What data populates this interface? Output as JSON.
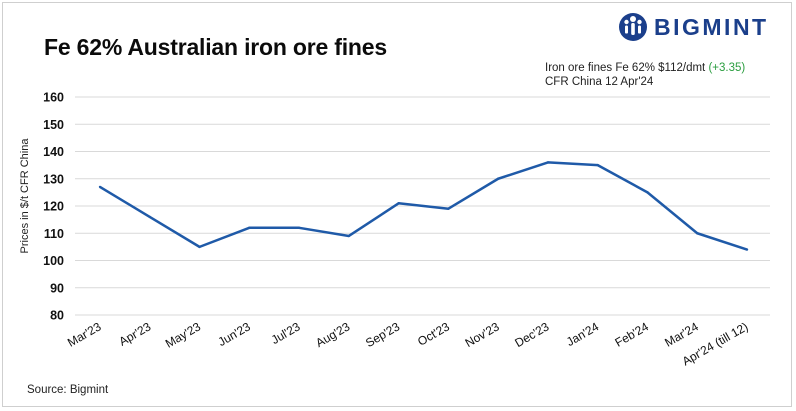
{
  "header": {
    "title": "Fe 62% Australian iron ore fines",
    "brand": "BIGMINT",
    "info_line1": "Iron ore fines Fe 62% $112/dmt",
    "info_change": "(+3.35)",
    "info_line2": "CFR China 12 Apr'24"
  },
  "footer": {
    "source": "Source: Bigmint"
  },
  "colors": {
    "line": "#1f5aa8",
    "grid": "#d9d9d9",
    "brand": "#1b3f8b",
    "change": "#2a9d3f"
  },
  "chart_data": {
    "type": "line",
    "title": "Fe 62% Australian iron ore fines",
    "xlabel": "",
    "ylabel": "Prices in $/t CFR China",
    "ylim": [
      80,
      160
    ],
    "yticks": [
      80,
      90,
      100,
      110,
      120,
      130,
      140,
      150,
      160
    ],
    "grid": true,
    "categories": [
      "Mar'23",
      "Apr'23",
      "May'23",
      "Jun'23",
      "Jul'23",
      "Aug'23",
      "Sep'23",
      "Oct'23",
      "Nov'23",
      "Dec'23",
      "Jan'24",
      "Feb'24",
      "Mar'24",
      "Apr'24 (till 12)"
    ],
    "values": [
      127,
      116,
      105,
      112,
      112,
      109,
      121,
      119,
      130,
      136,
      135,
      125,
      110,
      104
    ]
  }
}
